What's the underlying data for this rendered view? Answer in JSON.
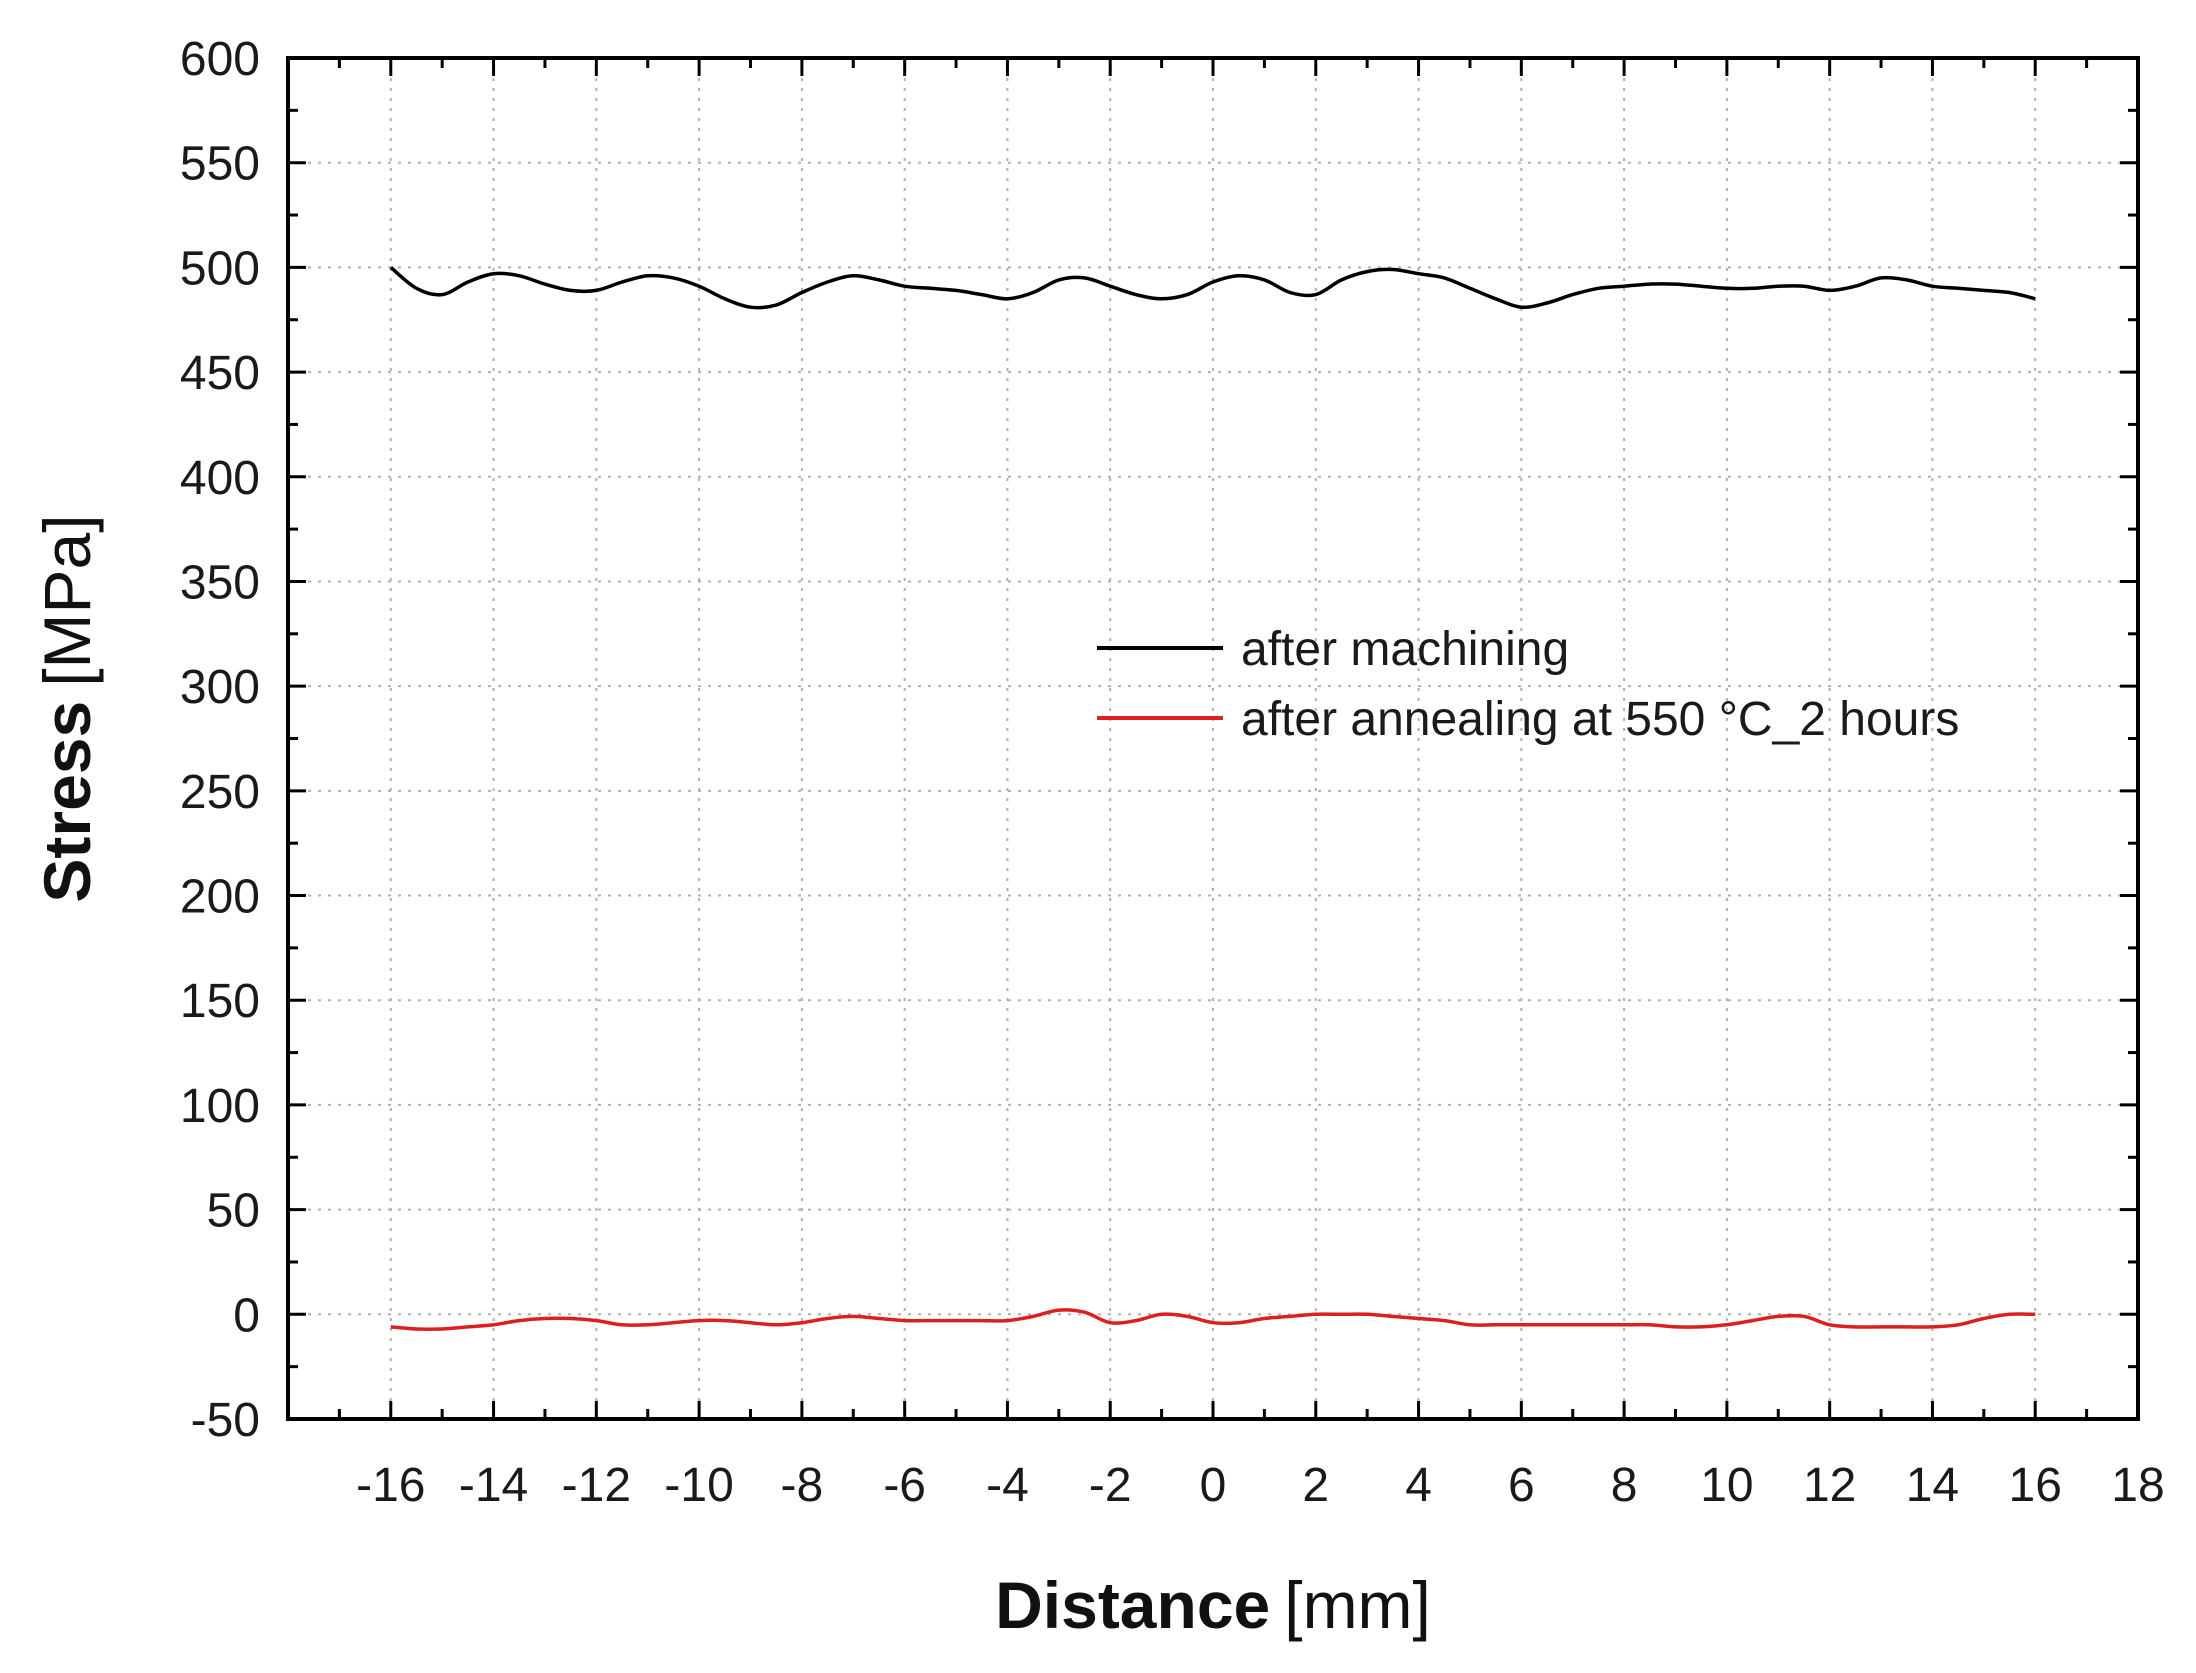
{
  "chart_data": {
    "type": "line",
    "title": "",
    "xlabel": {
      "bold": "Distance",
      "unit": "[mm]"
    },
    "ylabel": {
      "bold": "Stress",
      "unit": "[MPa]"
    },
    "xlim": [
      -18,
      18
    ],
    "ylim": [
      -50,
      600
    ],
    "x_ticks": [
      -16,
      -14,
      -12,
      -10,
      -8,
      -6,
      -4,
      -2,
      0,
      2,
      4,
      6,
      8,
      10,
      12,
      14,
      16,
      18
    ],
    "x_tick_labels": [
      "-16",
      "-14",
      "-12",
      "-10",
      "-8",
      "-6",
      "-4",
      "-2",
      "0",
      "2",
      "4",
      "6",
      "8",
      "10",
      "12",
      "14",
      "16",
      "18"
    ],
    "y_ticks": [
      -50,
      0,
      50,
      100,
      150,
      200,
      250,
      300,
      350,
      400,
      450,
      500,
      550,
      600
    ],
    "y_tick_labels": [
      "-50",
      "0",
      "50",
      "100",
      "150",
      "200",
      "250",
      "300",
      "350",
      "400",
      "450",
      "500",
      "550",
      "600"
    ],
    "grid": true,
    "legend_position": "center-right",
    "series": [
      {
        "name": "after machining",
        "color": "#000000",
        "x": [
          -16,
          -15.5,
          -15,
          -14.5,
          -14,
          -13.5,
          -13,
          -12.5,
          -12,
          -11.5,
          -11,
          -10.5,
          -10,
          -9.5,
          -9,
          -8.5,
          -8,
          -7.5,
          -7,
          -6.5,
          -6,
          -5.5,
          -5,
          -4.5,
          -4,
          -3.5,
          -3,
          -2.5,
          -2,
          -1.5,
          -1,
          -0.5,
          0,
          0.5,
          1,
          1.5,
          2,
          2.5,
          3,
          3.5,
          4,
          4.5,
          5,
          5.5,
          6,
          6.5,
          7,
          7.5,
          8,
          8.5,
          9,
          9.5,
          10,
          10.5,
          11,
          11.5,
          12,
          12.5,
          13,
          13.5,
          14,
          14.5,
          15,
          15.5,
          16
        ],
        "y": [
          500,
          490,
          487,
          493,
          497,
          496,
          492,
          489,
          489,
          493,
          496,
          495,
          491,
          485,
          481,
          482,
          488,
          493,
          496,
          494,
          491,
          490,
          489,
          487,
          485,
          488,
          494,
          495,
          491,
          487,
          485,
          487,
          493,
          496,
          494,
          488,
          487,
          494,
          498,
          499,
          497,
          495,
          490,
          485,
          481,
          483,
          487,
          490,
          491,
          492,
          492,
          491,
          490,
          490,
          491,
          491,
          489,
          491,
          495,
          494,
          491,
          490,
          489,
          488,
          485
        ]
      },
      {
        "name": "after annealing at 550 °C_2 hours",
        "color": "#dd1f1f",
        "x": [
          -16,
          -15.5,
          -15,
          -14.5,
          -14,
          -13.5,
          -13,
          -12.5,
          -12,
          -11.5,
          -11,
          -10.5,
          -10,
          -9.5,
          -9,
          -8.5,
          -8,
          -7.5,
          -7,
          -6.5,
          -6,
          -5.5,
          -5,
          -4.5,
          -4,
          -3.5,
          -3,
          -2.5,
          -2,
          -1.5,
          -1,
          -0.5,
          0,
          0.5,
          1,
          1.5,
          2,
          2.5,
          3,
          3.5,
          4,
          4.5,
          5,
          5.5,
          6,
          6.5,
          7,
          7.5,
          8,
          8.5,
          9,
          9.5,
          10,
          10.5,
          11,
          11.5,
          12,
          12.5,
          13,
          13.5,
          14,
          14.5,
          15,
          15.5,
          16
        ],
        "y": [
          -6,
          -7,
          -7,
          -6,
          -5,
          -3,
          -2,
          -2,
          -3,
          -5,
          -5,
          -4,
          -3,
          -3,
          -4,
          -5,
          -4,
          -2,
          -1,
          -2,
          -3,
          -3,
          -3,
          -3,
          -3,
          -1,
          2,
          1,
          -4,
          -3,
          0,
          -1,
          -4,
          -4,
          -2,
          -1,
          0,
          0,
          0,
          -1,
          -2,
          -3,
          -5,
          -5,
          -5,
          -5,
          -5,
          -5,
          -5,
          -5,
          -6,
          -6,
          -5,
          -3,
          -1,
          -1,
          -5,
          -6,
          -6,
          -6,
          -6,
          -5,
          -2,
          0,
          0
        ]
      }
    ]
  }
}
